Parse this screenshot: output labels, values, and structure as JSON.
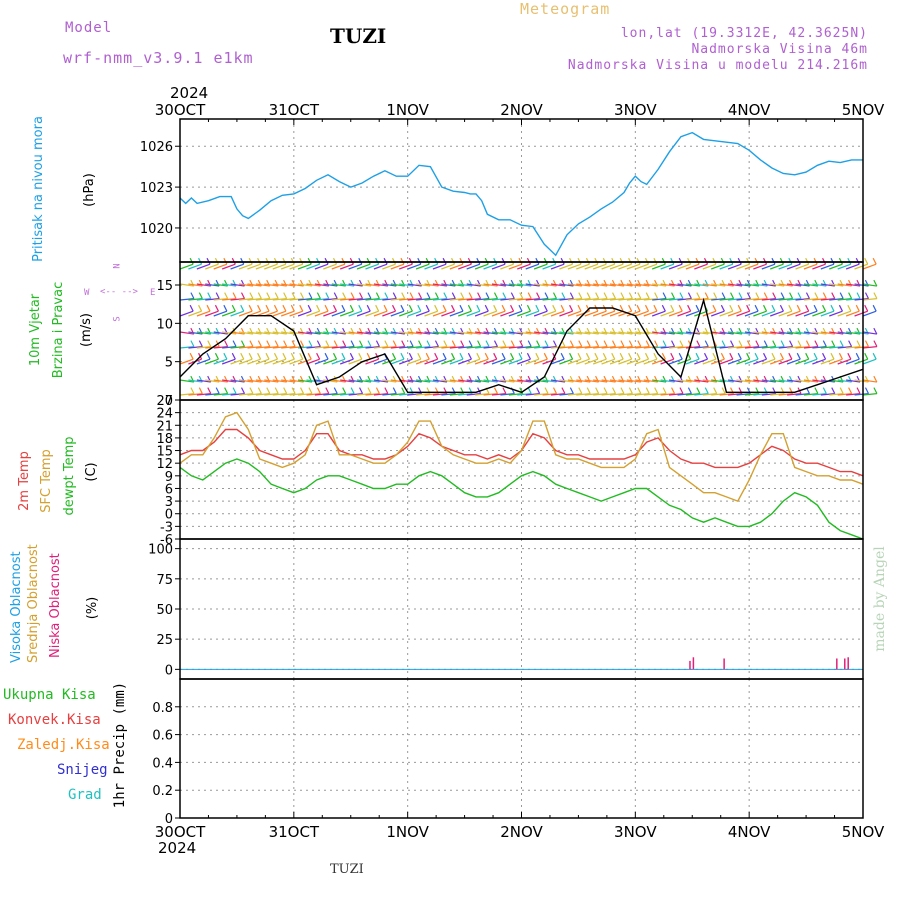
{
  "header": {
    "model_label": "Model",
    "model_name": "wrf-nmm_v3.9.1  e1km",
    "station": "TUZI",
    "meteogram": "Meteogram",
    "lonlat": "lon,lat (19.3312E, 42.3625N)",
    "elevation": "Nadmorska Visina 46m",
    "model_elevation": "Nadmorska Visina u modelu 214.216m",
    "year_top": "2024",
    "year_bottom": "2024",
    "footer_station": "TUZI",
    "credit": "made by Angel"
  },
  "dates": [
    "30OCT",
    "31OCT",
    "1NOV",
    "2NOV",
    "3NOV",
    "4NOV",
    "5NOV"
  ],
  "panels": {
    "pressure": {
      "label1": "Pritisak na nivou mora",
      "label2": "(hPa)",
      "color": "#1ea0e6"
    },
    "wind": {
      "label1": "10m Vjetar",
      "label2": "Brzina i Pravac",
      "label3": "(m/s)",
      "compass_n": "N",
      "compass_s": "S",
      "compass_w": "W",
      "compass_e": "E",
      "compass_n_color": "#c071d8",
      "color": "#22bb22"
    },
    "temp": {
      "label_2m": "2m Temp",
      "label_sfc": "SFC Temp",
      "label_dew": "dewpt Temp",
      "label_unit": "(C)",
      "color_2m": "#e64040",
      "color_sfc": "#d4a030",
      "color_dew": "#22bb22"
    },
    "cloud": {
      "label_high": "Visoka Oblacnost",
      "label_mid": "Srednja Oblacnost",
      "label_low": "Niska Oblacnost",
      "label_unit": "(%)",
      "color_high": "#1ea0e6",
      "color_mid": "#d4a030",
      "color_low": "#e0207a"
    },
    "precip": {
      "label_total": "Ukupna Kisa",
      "label_conv": "Konvek.Kisa",
      "label_frz": "Zaledj.Kisa",
      "label_snow": "Snijeg",
      "label_grad": "Grad",
      "label_unit": "1hr Precip (mm)",
      "color_total": "#22bb22",
      "color_conv": "#e64040",
      "color_frz": "#ff8c1a",
      "color_snow": "#3030d0",
      "color_grad": "#20c0c0"
    }
  },
  "chart_data": [
    {
      "type": "line",
      "ylabel": "(hPa)",
      "ylim": [
        1017.5,
        1028
      ],
      "yticks": [
        1020,
        1023,
        1026
      ],
      "x_days": [
        0,
        0.05,
        0.1,
        0.15,
        0.25,
        0.35,
        0.45,
        0.5,
        0.55,
        0.6,
        0.7,
        0.8,
        0.9,
        1.0,
        1.1,
        1.2,
        1.3,
        1.4,
        1.5,
        1.6,
        1.7,
        1.8,
        1.9,
        2.0,
        2.1,
        2.2,
        2.3,
        2.4,
        2.5,
        2.55,
        2.6,
        2.65,
        2.7,
        2.8,
        2.9,
        3.0,
        3.1,
        3.2,
        3.3,
        3.4,
        3.5,
        3.6,
        3.7,
        3.8,
        3.9,
        3.95,
        4.0,
        4.05,
        4.1,
        4.2,
        4.3,
        4.4,
        4.5,
        4.6,
        4.7,
        4.8,
        4.9,
        5.0,
        5.1,
        5.2,
        5.3,
        5.4,
        5.5,
        5.6,
        5.7,
        5.8,
        5.9,
        6.0
      ],
      "series": [
        {
          "name": "Pritisak na nivou mora",
          "values": [
            1022.2,
            1021.8,
            1022.2,
            1021.8,
            1022.0,
            1022.3,
            1022.3,
            1021.4,
            1020.9,
            1020.7,
            1021.3,
            1022.0,
            1022.4,
            1022.5,
            1022.9,
            1023.5,
            1023.9,
            1023.4,
            1023.0,
            1023.3,
            1023.8,
            1024.2,
            1023.8,
            1023.8,
            1024.6,
            1024.5,
            1023.0,
            1022.7,
            1022.6,
            1022.5,
            1022.5,
            1022.0,
            1021.0,
            1020.6,
            1020.6,
            1020.2,
            1020.1,
            1018.8,
            1018.0,
            1019.5,
            1020.3,
            1020.8,
            1021.4,
            1021.9,
            1022.6,
            1023.3,
            1023.8,
            1023.4,
            1023.2,
            1024.3,
            1025.6,
            1026.7,
            1027.0,
            1026.5,
            1026.4,
            1026.3,
            1026.2,
            1025.7,
            1025.0,
            1024.4,
            1024.0,
            1023.9,
            1024.1,
            1024.6,
            1024.9,
            1024.8,
            1025.0,
            1025.0
          ]
        }
      ]
    },
    {
      "type": "line",
      "ylabel": "(m/s)",
      "ylim": [
        0,
        18
      ],
      "yticks": [
        0,
        5,
        10,
        15
      ],
      "x_days": [
        0,
        0.2,
        0.4,
        0.6,
        0.8,
        1.0,
        1.2,
        1.4,
        1.6,
        1.8,
        2.0,
        2.2,
        2.4,
        2.6,
        2.8,
        3.0,
        3.2,
        3.4,
        3.6,
        3.8,
        4.0,
        4.2,
        4.4,
        4.6,
        4.8,
        5.0,
        5.2,
        5.4,
        5.6,
        5.8,
        6.0
      ],
      "series": [
        {
          "name": "Brzina",
          "values": [
            3,
            6,
            8,
            11,
            11,
            9,
            2,
            3,
            5,
            6,
            1,
            1,
            1,
            1,
            2,
            1,
            3,
            9,
            12,
            12,
            11,
            6,
            3,
            13,
            1,
            1,
            1,
            1,
            2,
            3,
            4
          ]
        }
      ]
    },
    {
      "type": "line",
      "ylabel": "(C)",
      "ylim": [
        -6,
        27
      ],
      "yticks": [
        -6,
        -3,
        0,
        3,
        6,
        9,
        12,
        15,
        18,
        21,
        24,
        27
      ],
      "x_days": [
        0,
        0.1,
        0.2,
        0.3,
        0.4,
        0.5,
        0.6,
        0.7,
        0.8,
        0.9,
        1.0,
        1.1,
        1.2,
        1.3,
        1.4,
        1.5,
        1.6,
        1.7,
        1.8,
        1.9,
        2.0,
        2.1,
        2.2,
        2.3,
        2.4,
        2.5,
        2.6,
        2.7,
        2.8,
        2.9,
        3.0,
        3.1,
        3.2,
        3.3,
        3.4,
        3.5,
        3.6,
        3.7,
        3.8,
        3.9,
        4.0,
        4.1,
        4.2,
        4.3,
        4.4,
        4.5,
        4.6,
        4.7,
        4.8,
        4.9,
        5.0,
        5.1,
        5.2,
        5.3,
        5.4,
        5.5,
        5.6,
        5.7,
        5.8,
        5.9,
        6.0
      ],
      "series": [
        {
          "name": "2m Temp",
          "values": [
            14,
            15,
            15,
            17,
            20,
            20,
            18,
            15,
            14,
            13,
            13,
            15,
            19,
            19,
            15,
            14,
            14,
            13,
            13,
            14,
            16,
            19,
            18,
            16,
            15,
            14,
            14,
            13,
            14,
            13,
            15,
            19,
            18,
            15,
            14,
            14,
            13,
            13,
            13,
            13,
            14,
            17,
            18,
            15,
            13,
            12,
            12,
            11,
            11,
            11,
            12,
            14,
            16,
            15,
            13,
            12,
            12,
            11,
            10,
            10,
            9
          ]
        },
        {
          "name": "SFC Temp",
          "values": [
            12,
            14,
            14,
            18,
            23,
            24,
            20,
            13,
            12,
            11,
            12,
            14,
            21,
            22,
            14,
            14,
            13,
            12,
            12,
            14,
            17,
            22,
            22,
            16,
            14,
            13,
            12,
            12,
            13,
            12,
            15,
            22,
            22,
            14,
            13,
            13,
            12,
            11,
            11,
            11,
            13,
            19,
            20,
            11,
            9,
            7,
            5,
            5,
            4,
            3,
            8,
            14,
            19,
            19,
            11,
            10,
            9,
            9,
            8,
            8,
            7
          ]
        },
        {
          "name": "dewpt Temp",
          "values": [
            11,
            9,
            8,
            10,
            12,
            13,
            12,
            10,
            7,
            6,
            5,
            6,
            8,
            9,
            9,
            8,
            7,
            6,
            6,
            7,
            7,
            9,
            10,
            9,
            7,
            5,
            4,
            4,
            5,
            7,
            9,
            10,
            9,
            7,
            6,
            5,
            4,
            3,
            4,
            5,
            6,
            6,
            4,
            2,
            1,
            -1,
            -2,
            -1,
            -2,
            -3,
            -3,
            -2,
            0,
            3,
            5,
            4,
            2,
            -2,
            -4,
            -5,
            -6
          ]
        }
      ]
    },
    {
      "type": "bar",
      "ylabel": "(%)",
      "ylim": [
        -8,
        108
      ],
      "yticks": [
        0,
        25,
        50,
        75,
        100
      ],
      "x_days": [
        4.48,
        4.51,
        4.78,
        5.77,
        5.84,
        5.87
      ],
      "series": [
        {
          "name": "Niska Oblacnost",
          "values": [
            7,
            10,
            9,
            9,
            9,
            10
          ]
        }
      ]
    },
    {
      "type": "bar",
      "ylabel": "1hr Precip (mm)",
      "ylim": [
        0,
        1.0
      ],
      "yticks": [
        0,
        0.2,
        0.4,
        0.6,
        0.8
      ],
      "series": [
        {
          "name": "Ukupna Kisa",
          "values": []
        }
      ]
    }
  ]
}
